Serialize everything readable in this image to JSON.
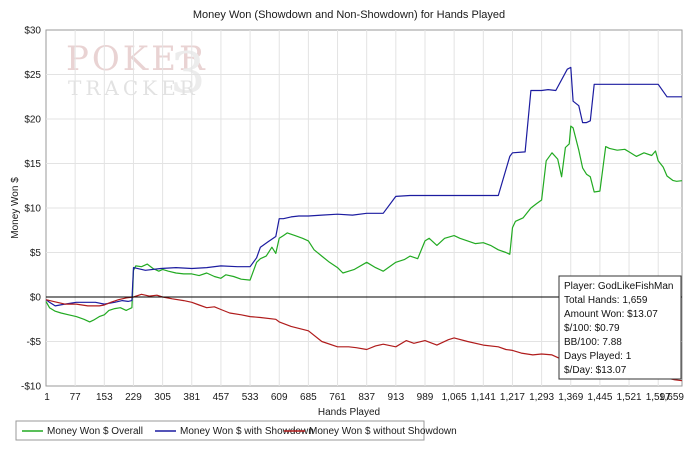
{
  "watermark": {
    "brand_top": "POKER",
    "brand_bottom": "TRACKER",
    "brand_version": "3"
  },
  "chart_data": {
    "type": "line",
    "title": "Money Won (Showdown and Non-Showdown) for Hands Played",
    "xlabel": "Hands Played",
    "ylabel": "Money Won $",
    "xlim": [
      1,
      1659
    ],
    "ylim": [
      -10,
      30
    ],
    "grid": true,
    "legend_position": "bottom",
    "x_ticks": [
      1,
      77,
      153,
      229,
      305,
      381,
      457,
      533,
      609,
      685,
      761,
      837,
      913,
      989,
      1065,
      1141,
      1217,
      1293,
      1369,
      1445,
      1521,
      1597,
      1659
    ],
    "x_tick_labels": [
      "1",
      "77",
      "153",
      "229",
      "305",
      "381",
      "457",
      "533",
      "609",
      "685",
      "761",
      "837",
      "913",
      "989",
      "1,065",
      "1,141",
      "1,217",
      "1,293",
      "1,369",
      "1,445",
      "1,521",
      "1,597",
      "1,659"
    ],
    "y_ticks": [
      -10,
      -5,
      0,
      5,
      10,
      15,
      20,
      25,
      30
    ],
    "y_tick_labels": [
      "-$10",
      "-$5",
      "$0",
      "$5",
      "$10",
      "$15",
      "$20",
      "$25",
      "$30"
    ],
    "series": [
      {
        "name": "Money Won $ Overall",
        "color": "#22aa22",
        "x": [
          1,
          10,
          25,
          40,
          60,
          80,
          100,
          115,
          125,
          140,
          153,
          165,
          180,
          195,
          210,
          225,
          229,
          235,
          250,
          265,
          280,
          295,
          305,
          320,
          340,
          360,
          381,
          400,
          420,
          440,
          457,
          470,
          490,
          510,
          533,
          550,
          560,
          575,
          590,
          600,
          609,
          620,
          630,
          650,
          670,
          685,
          700,
          720,
          740,
          761,
          775,
          790,
          805,
          837,
          860,
          880,
          913,
          935,
          950,
          970,
          989,
          1000,
          1020,
          1040,
          1065,
          1080,
          1100,
          1120,
          1141,
          1160,
          1180,
          1200,
          1210,
          1217,
          1225,
          1245,
          1265,
          1280,
          1293,
          1305,
          1320,
          1335,
          1345,
          1355,
          1365,
          1369,
          1375,
          1390,
          1400,
          1410,
          1420,
          1430,
          1445,
          1460,
          1470,
          1490,
          1510,
          1521,
          1540,
          1560,
          1580,
          1590,
          1597,
          1610,
          1620,
          1635,
          1645,
          1659
        ],
        "values": [
          -0.5,
          -1.2,
          -1.6,
          -1.8,
          -2.0,
          -2.2,
          -2.5,
          -2.8,
          -2.6,
          -2.2,
          -2.0,
          -1.5,
          -1.3,
          -1.2,
          -1.5,
          -1.2,
          3.0,
          3.5,
          3.4,
          3.7,
          3.2,
          2.9,
          3.1,
          2.9,
          2.7,
          2.6,
          2.6,
          2.4,
          2.7,
          2.3,
          2.1,
          2.5,
          2.3,
          2.0,
          1.9,
          3.9,
          4.3,
          4.6,
          5.6,
          4.9,
          6.6,
          6.9,
          7.2,
          6.9,
          6.6,
          6.3,
          5.3,
          4.6,
          3.9,
          3.3,
          2.7,
          2.9,
          3.1,
          3.9,
          3.3,
          2.9,
          3.9,
          4.2,
          4.6,
          4.3,
          6.3,
          6.6,
          5.8,
          6.6,
          6.9,
          6.6,
          6.3,
          6.0,
          6.1,
          5.8,
          5.3,
          5.0,
          4.8,
          7.8,
          8.5,
          8.9,
          10.0,
          10.5,
          10.9,
          15.3,
          16.2,
          15.5,
          13.5,
          16.8,
          17.2,
          19.2,
          19.0,
          16.5,
          14.5,
          13.8,
          13.5,
          11.8,
          11.9,
          16.9,
          16.7,
          16.5,
          16.6,
          16.3,
          15.8,
          16.2,
          15.9,
          16.4,
          15.3,
          14.6,
          13.6,
          13.1,
          13.0,
          13.07
        ]
      },
      {
        "name": "Money Won $ with Showdown",
        "color": "#1c1ca0",
        "x": [
          1,
          10,
          25,
          50,
          80,
          110,
          130,
          153,
          180,
          200,
          215,
          225,
          229,
          260,
          300,
          340,
          381,
          420,
          457,
          500,
          533,
          550,
          560,
          580,
          600,
          609,
          620,
          640,
          660,
          685,
          720,
          761,
          800,
          837,
          880,
          913,
          950,
          989,
          1020,
          1065,
          1100,
          1141,
          1180,
          1210,
          1217,
          1250,
          1265,
          1293,
          1310,
          1330,
          1360,
          1369,
          1375,
          1390,
          1400,
          1410,
          1420,
          1430,
          1445,
          1480,
          1521,
          1560,
          1597,
          1620,
          1659
        ],
        "values": [
          -0.3,
          -0.6,
          -1.0,
          -0.8,
          -0.6,
          -0.6,
          -0.6,
          -0.8,
          -0.6,
          -0.4,
          -0.5,
          -0.4,
          3.3,
          3.0,
          3.2,
          3.3,
          3.2,
          3.3,
          3.5,
          3.4,
          3.4,
          4.4,
          5.6,
          6.2,
          6.8,
          8.8,
          8.8,
          9.0,
          9.1,
          9.1,
          9.2,
          9.3,
          9.2,
          9.4,
          9.4,
          11.3,
          11.4,
          11.4,
          11.4,
          11.4,
          11.4,
          11.4,
          11.4,
          15.8,
          16.2,
          16.3,
          23.2,
          23.2,
          23.3,
          23.2,
          25.6,
          25.8,
          22.0,
          21.5,
          19.6,
          19.6,
          19.8,
          23.9,
          23.9,
          23.9,
          23.9,
          23.9,
          23.9,
          22.5,
          22.5
        ]
      },
      {
        "name": "Money Won $ without Showdown",
        "color": "#b01c1c",
        "x": [
          1,
          20,
          50,
          80,
          110,
          140,
          153,
          170,
          190,
          210,
          229,
          250,
          270,
          290,
          305,
          330,
          360,
          381,
          400,
          420,
          440,
          457,
          480,
          510,
          533,
          560,
          600,
          609,
          640,
          685,
          720,
          761,
          790,
          810,
          837,
          860,
          880,
          913,
          940,
          960,
          989,
          1020,
          1050,
          1065,
          1100,
          1141,
          1180,
          1200,
          1217,
          1240,
          1270,
          1293,
          1320,
          1345,
          1369,
          1400,
          1445,
          1480,
          1521,
          1560,
          1597,
          1620,
          1640,
          1659
        ],
        "values": [
          -0.3,
          -0.5,
          -0.8,
          -0.8,
          -1.0,
          -1.0,
          -0.9,
          -0.6,
          -0.3,
          -0.1,
          0.0,
          0.3,
          0.1,
          0.2,
          0.0,
          -0.2,
          -0.4,
          -0.6,
          -0.9,
          -1.2,
          -1.1,
          -1.4,
          -1.8,
          -2.0,
          -2.2,
          -2.3,
          -2.5,
          -2.8,
          -3.3,
          -3.8,
          -5.0,
          -5.6,
          -5.6,
          -5.7,
          -5.9,
          -5.5,
          -5.3,
          -5.6,
          -4.9,
          -5.2,
          -4.9,
          -5.4,
          -4.8,
          -4.6,
          -5.0,
          -5.4,
          -5.6,
          -5.9,
          -6.0,
          -6.3,
          -6.5,
          -6.4,
          -6.5,
          -7.0,
          -8.1,
          -8.0,
          -8.3,
          -8.7,
          -8.4,
          -8.7,
          -8.9,
          -9.1,
          -9.3,
          -9.4
        ]
      }
    ]
  },
  "info_box": {
    "player": "Player: GodLikeFishMan",
    "total_hands": "Total Hands: 1,659",
    "amount_won": "Amount Won: $13.07",
    "per_100": "$/100: $0.79",
    "bb_per_100": "BB/100: 7.88",
    "days_played": "Days Played: 1",
    "per_day": "$/Day: $13.07"
  }
}
